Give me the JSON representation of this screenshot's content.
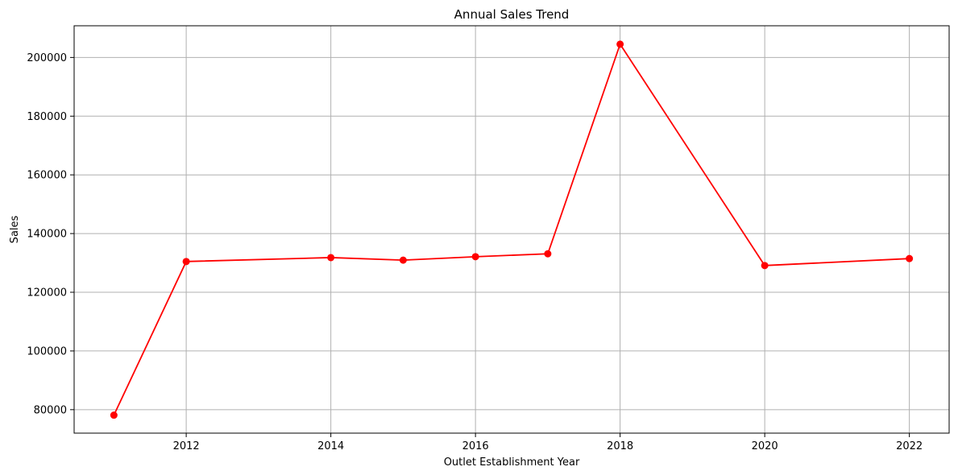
{
  "chart_data": {
    "type": "line",
    "title": "Annual Sales Trend",
    "xlabel": "Outlet Establishment Year",
    "ylabel": "Sales",
    "x": [
      2011,
      2012,
      2014,
      2015,
      2016,
      2017,
      2018,
      2020,
      2022
    ],
    "series": [
      {
        "values": [
          78131,
          130477,
          131810,
          130942,
          132113,
          133104,
          204522,
          129103,
          131477
        ]
      }
    ],
    "xlim": [
      2010.45,
      2022.55
    ],
    "ylim": [
      72000,
      210800
    ],
    "xticks": [
      2012,
      2014,
      2016,
      2018,
      2020,
      2022
    ],
    "xtick_labels": [
      "2012",
      "2014",
      "2016",
      "2018",
      "2020",
      "2022"
    ],
    "yticks": [
      80000,
      100000,
      120000,
      140000,
      160000,
      180000,
      200000
    ],
    "ytick_labels": [
      "80000",
      "100000",
      "120000",
      "140000",
      "160000",
      "180000",
      "200000"
    ],
    "grid": true,
    "marker": "circle",
    "line_color": "#ff0000"
  }
}
